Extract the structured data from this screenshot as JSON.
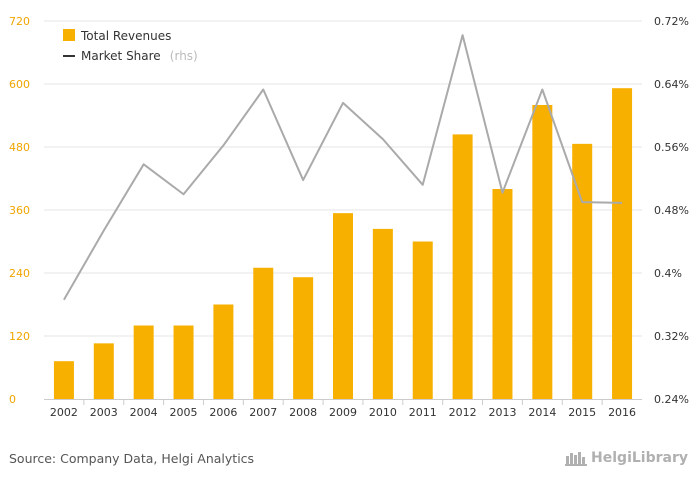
{
  "chart_data": {
    "type": "bar+line",
    "categories": [
      "2002",
      "2003",
      "2004",
      "2005",
      "2006",
      "2007",
      "2008",
      "2009",
      "2010",
      "2011",
      "2012",
      "2013",
      "2014",
      "2015",
      "2016"
    ],
    "series": [
      {
        "name": "Total Revenues",
        "type": "bar",
        "axis": "left",
        "color": "#f7b000",
        "values": [
          72,
          106,
          140,
          140,
          180,
          250,
          232,
          354,
          324,
          300,
          504,
          400,
          560,
          486,
          592
        ]
      },
      {
        "name": "Market Share",
        "name_suffix": "(rhs)",
        "type": "line",
        "axis": "right",
        "color": "#aaaaaa",
        "values": [
          0.366,
          0.454,
          0.538,
          0.5,
          0.562,
          0.633,
          0.518,
          0.616,
          0.57,
          0.512,
          0.702,
          0.502,
          0.633,
          0.49,
          0.489
        ]
      }
    ],
    "left_axis": {
      "min": 0,
      "max": 720,
      "ticks": [
        "0",
        "120",
        "240",
        "360",
        "480",
        "600",
        "720"
      ],
      "color": "#f0a500"
    },
    "right_axis": {
      "min": 0.24,
      "max": 0.72,
      "ticks": [
        "0.24%",
        "0.32%",
        "0.4%",
        "0.48%",
        "0.56%",
        "0.64%",
        "0.72%"
      ]
    },
    "grid": true,
    "legend_position": "top-left"
  },
  "footer": {
    "source": "Source: Company Data, Helgi Analytics",
    "brand": "HelgiLibrary"
  }
}
